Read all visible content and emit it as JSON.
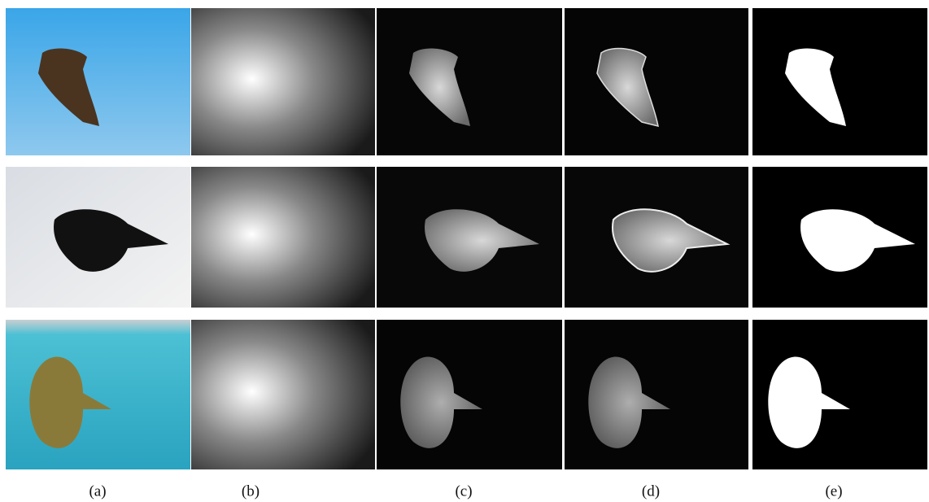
{
  "figure": {
    "captions": [
      "(a)",
      "(b)",
      "(c)",
      "(d)",
      "(e)"
    ]
  }
}
